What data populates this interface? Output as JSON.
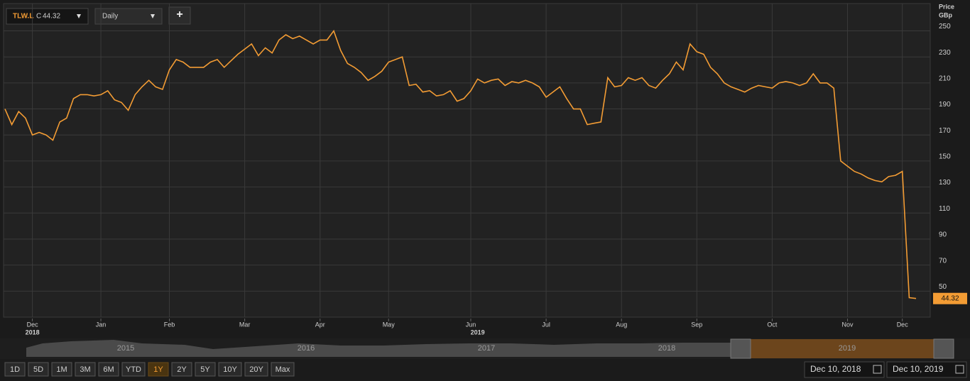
{
  "toolbar": {
    "symbol": "TLW.L",
    "close_prefix": "C",
    "interval": "Daily",
    "add": "+"
  },
  "chart_data": {
    "type": "line",
    "y_axis_label": [
      "Price",
      "GBp"
    ],
    "series": [
      {
        "name": "TLW.L",
        "color": "#f39c34",
        "values": [
          190,
          178,
          188,
          183,
          170,
          172,
          170,
          166,
          180,
          183,
          198,
          201,
          201,
          200,
          201,
          204,
          197,
          195,
          189,
          201,
          207,
          212,
          207,
          205,
          220,
          228,
          226,
          222,
          222,
          222,
          226,
          228,
          222,
          227,
          232,
          236,
          240,
          231,
          237,
          233,
          243,
          247,
          244,
          246,
          243,
          240,
          243,
          243,
          250,
          235,
          225,
          222,
          218,
          212,
          215,
          219,
          226,
          228,
          230,
          208,
          209,
          203,
          204,
          200,
          201,
          204,
          196,
          198,
          204,
          213,
          210,
          212,
          213,
          208,
          211,
          210,
          212,
          210,
          207,
          199,
          203,
          207,
          198,
          190,
          190,
          178,
          179,
          180,
          214,
          207,
          208,
          214,
          212,
          214,
          208,
          206,
          212,
          217,
          226,
          220,
          240,
          234,
          232,
          222,
          217,
          210,
          207,
          205,
          203,
          206,
          208,
          207,
          206,
          210,
          211,
          210,
          208,
          210,
          217,
          210,
          210,
          206,
          150,
          146,
          142,
          140,
          137,
          135,
          134,
          138,
          139,
          142,
          45,
          44.32
        ]
      }
    ],
    "xlim": [
      0,
      133
    ],
    "xticks": [
      {
        "value": 4,
        "label": "Dec"
      },
      {
        "value": 14,
        "label": "Jan"
      },
      {
        "value": 24,
        "label": "Feb"
      },
      {
        "value": 35,
        "label": "Mar"
      },
      {
        "value": 46,
        "label": "Apr"
      },
      {
        "value": 56,
        "label": "May"
      },
      {
        "value": 68,
        "label": "Jun"
      },
      {
        "value": 79,
        "label": "Jul"
      },
      {
        "value": 90,
        "label": "Aug"
      },
      {
        "value": 101,
        "label": "Sep"
      },
      {
        "value": 112,
        "label": "Oct"
      },
      {
        "value": 123,
        "label": "Nov"
      },
      {
        "value": 131,
        "label": "Dec"
      }
    ],
    "year_ticks": [
      {
        "value": 4,
        "label": "2018"
      },
      {
        "value": 69,
        "label": "2019"
      }
    ],
    "ylim": [
      30,
      271
    ],
    "yticks": [
      50,
      70,
      90,
      110,
      130,
      150,
      170,
      190,
      210,
      230,
      250
    ],
    "grid": true
  },
  "navigator_years": [
    "2015",
    "2016",
    "2017",
    "2018",
    "2019"
  ],
  "range_buttons": [
    "1D",
    "5D",
    "1M",
    "3M",
    "6M",
    "YTD",
    "1Y",
    "2Y",
    "5Y",
    "10Y",
    "20Y",
    "Max"
  ],
  "date_range": [
    "Dec 10, 2018",
    "Dec 10, 2019"
  ]
}
